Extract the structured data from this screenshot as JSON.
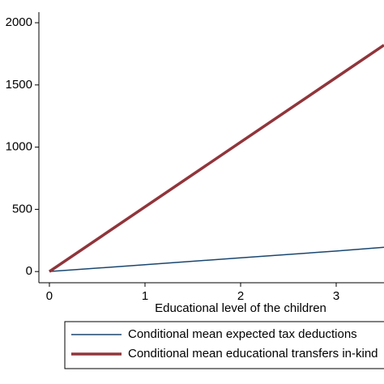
{
  "chart_data": {
    "type": "line",
    "x_label": "Educational level of the children",
    "x": [
      0,
      1,
      2,
      3,
      3.5
    ],
    "series": [
      {
        "name": "Conditional mean expected tax deductions",
        "color": "#1a476f",
        "width": 1.5,
        "values": [
          0,
          55,
          110,
          165,
          195
        ]
      },
      {
        "name": "Conditional mean educational transfers in-kind",
        "color": "#90353b",
        "width": 3.5,
        "values": [
          0,
          520,
          1040,
          1560,
          1820
        ]
      }
    ],
    "xlim": [
      -0.11,
      3.5
    ],
    "xticks": [
      0,
      1,
      2,
      3
    ],
    "ylim": [
      -90,
      2085
    ],
    "yticks": [
      0,
      500,
      1000,
      1500,
      2000
    ],
    "grid": false,
    "legend_position": "bottom"
  }
}
